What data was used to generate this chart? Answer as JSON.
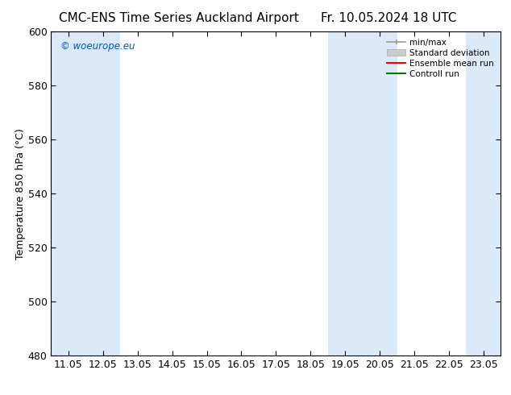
{
  "title_left": "CMC-ENS Time Series Auckland Airport",
  "title_right": "Fr. 10.05.2024 18 UTC",
  "ylabel": "Temperature 850 hPa (°C)",
  "ylim": [
    480,
    600
  ],
  "yticks": [
    480,
    500,
    520,
    540,
    560,
    580,
    600
  ],
  "xtick_labels": [
    "11.05",
    "12.05",
    "13.05",
    "14.05",
    "15.05",
    "16.05",
    "17.05",
    "18.05",
    "19.05",
    "20.05",
    "21.05",
    "22.05",
    "23.05"
  ],
  "watermark": "© woeurope.eu",
  "watermark_color": "#0055cc",
  "bg_color": "#ffffff",
  "plot_bg_color": "#ffffff",
  "shaded_color": "#dce9f8",
  "legend_labels": [
    "min/max",
    "Standard deviation",
    "Ensemble mean run",
    "Controll run"
  ],
  "legend_colors_line": [
    "#999999",
    "#bbbbbb",
    "#ff0000",
    "#007700"
  ],
  "spine_color": "#000000",
  "title_fontsize": 11,
  "tick_fontsize": 9,
  "ylabel_fontsize": 9
}
